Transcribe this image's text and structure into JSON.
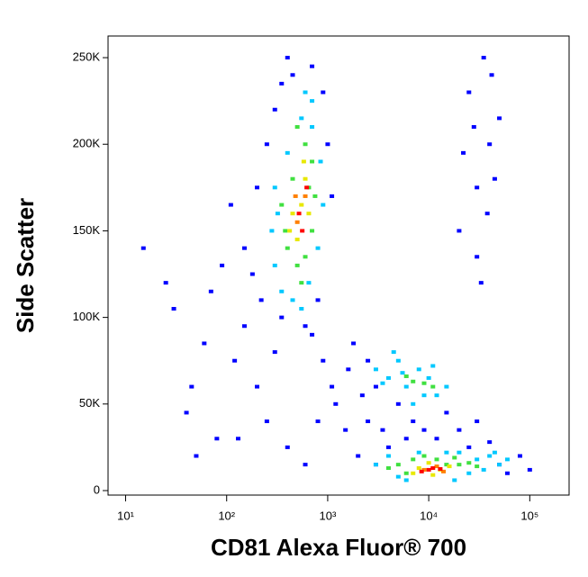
{
  "chart_data": {
    "type": "scatter",
    "x_label": "CD81 Alexa Fluor® 700",
    "y_label": "Side Scatter",
    "xscale": "log",
    "xlim": [
      6.7,
      245000
    ],
    "xticks": [
      {
        "value": 10,
        "label": "10¹"
      },
      {
        "value": 100,
        "label": "10²"
      },
      {
        "value": 1000,
        "label": "10³"
      },
      {
        "value": 10000,
        "label": "10⁴"
      },
      {
        "value": 100000,
        "label": "10⁵"
      }
    ],
    "ylim": [
      -2600,
      262500
    ],
    "yticks": [
      0,
      {
        "value": 50000,
        "label": "50K"
      },
      {
        "value": 100000,
        "label": "100K"
      },
      {
        "value": 150000,
        "label": "150K"
      },
      {
        "value": 200000,
        "label": "200K"
      },
      {
        "value": 250000,
        "label": "250K"
      }
    ],
    "series": [
      {
        "color": "#0000ff",
        "x": [
          15,
          25,
          40,
          60,
          80,
          30,
          50,
          120,
          150,
          90,
          200,
          250,
          180,
          300,
          400,
          350,
          700,
          900,
          1200,
          1500,
          2000,
          1800,
          2500,
          3000,
          1100,
          800,
          600,
          150,
          110,
          70,
          45,
          130,
          220,
          1600,
          2200,
          3500,
          5000,
          7000,
          9000,
          12000,
          15000,
          20000,
          25000,
          30000,
          40000,
          50000,
          60000,
          80000,
          100000,
          4000,
          6000,
          3000,
          2500,
          20000,
          30000,
          40000,
          25000,
          35000,
          45000,
          50000,
          30000,
          22000,
          38000,
          42000,
          28000,
          33000,
          200,
          250,
          300,
          350,
          400,
          450,
          700,
          900,
          1000,
          1100,
          800,
          600
        ],
        "values": [
          140000,
          120000,
          45000,
          85000,
          30000,
          105000,
          20000,
          75000,
          95000,
          130000,
          60000,
          40000,
          125000,
          80000,
          25000,
          100000,
          90000,
          75000,
          50000,
          35000,
          20000,
          85000,
          40000,
          15000,
          60000,
          40000,
          15000,
          140000,
          165000,
          115000,
          60000,
          30000,
          110000,
          70000,
          55000,
          35000,
          50000,
          40000,
          35000,
          30000,
          45000,
          35000,
          25000,
          40000,
          28000,
          15000,
          10000,
          20000,
          12000,
          25000,
          30000,
          60000,
          75000,
          150000,
          175000,
          200000,
          230000,
          250000,
          180000,
          215000,
          135000,
          195000,
          160000,
          240000,
          210000,
          120000,
          175000,
          200000,
          220000,
          235000,
          250000,
          240000,
          245000,
          230000,
          200000,
          170000,
          110000,
          95000
        ]
      },
      {
        "color": "#00c8ff",
        "x": [
          300,
          350,
          450,
          550,
          650,
          800,
          900,
          850,
          700,
          550,
          400,
          300,
          280,
          320,
          700,
          600,
          3000,
          4000,
          5000,
          6000,
          8000,
          10000,
          12000,
          15000,
          7000,
          9000,
          4500,
          3500,
          11000,
          5500,
          3000,
          4000,
          5000,
          20000,
          30000,
          40000,
          50000,
          60000,
          25000,
          15000,
          8000,
          35000,
          45000,
          6000,
          18000
        ],
        "values": [
          130000,
          115000,
          110000,
          105000,
          120000,
          140000,
          165000,
          190000,
          210000,
          215000,
          195000,
          175000,
          150000,
          160000,
          225000,
          230000,
          70000,
          65000,
          75000,
          60000,
          70000,
          65000,
          55000,
          60000,
          50000,
          55000,
          80000,
          62000,
          72000,
          68000,
          15000,
          20000,
          8000,
          22000,
          18000,
          20000,
          15000,
          18000,
          10000,
          22000,
          22000,
          12000,
          22000,
          6000,
          6000
        ]
      },
      {
        "color": "#40e040",
        "x": [
          400,
          500,
          600,
          700,
          750,
          700,
          600,
          450,
          350,
          380,
          650,
          550,
          500,
          7000,
          9000,
          6000,
          11000,
          5000,
          7000,
          9000,
          12000,
          15000,
          20000,
          25000,
          30000,
          18000,
          6000,
          4000
        ],
        "values": [
          140000,
          130000,
          135000,
          150000,
          170000,
          190000,
          200000,
          180000,
          165000,
          150000,
          175000,
          120000,
          210000,
          63000,
          62000,
          66000,
          60000,
          15000,
          18000,
          20000,
          18000,
          15000,
          15000,
          16000,
          14000,
          19000,
          10000,
          13000
        ]
      },
      {
        "color": "#e8e800",
        "x": [
          450,
          550,
          600,
          500,
          650,
          420,
          580,
          8000,
          10000,
          13000,
          16000,
          7000,
          11000
        ],
        "values": [
          160000,
          165000,
          180000,
          145000,
          160000,
          150000,
          190000,
          13000,
          16000,
          12000,
          14000,
          10000,
          9000
        ]
      },
      {
        "color": "#ff8000",
        "x": [
          500,
          600,
          480,
          9000,
          12000,
          14000
        ],
        "values": [
          155000,
          170000,
          170000,
          12000,
          14000,
          11000
        ]
      },
      {
        "color": "#ff0000",
        "x": [
          520,
          560,
          620,
          10000,
          11000,
          13000,
          8500
        ],
        "values": [
          160000,
          150000,
          175000,
          12000,
          13000,
          12500,
          11000
        ]
      }
    ]
  }
}
